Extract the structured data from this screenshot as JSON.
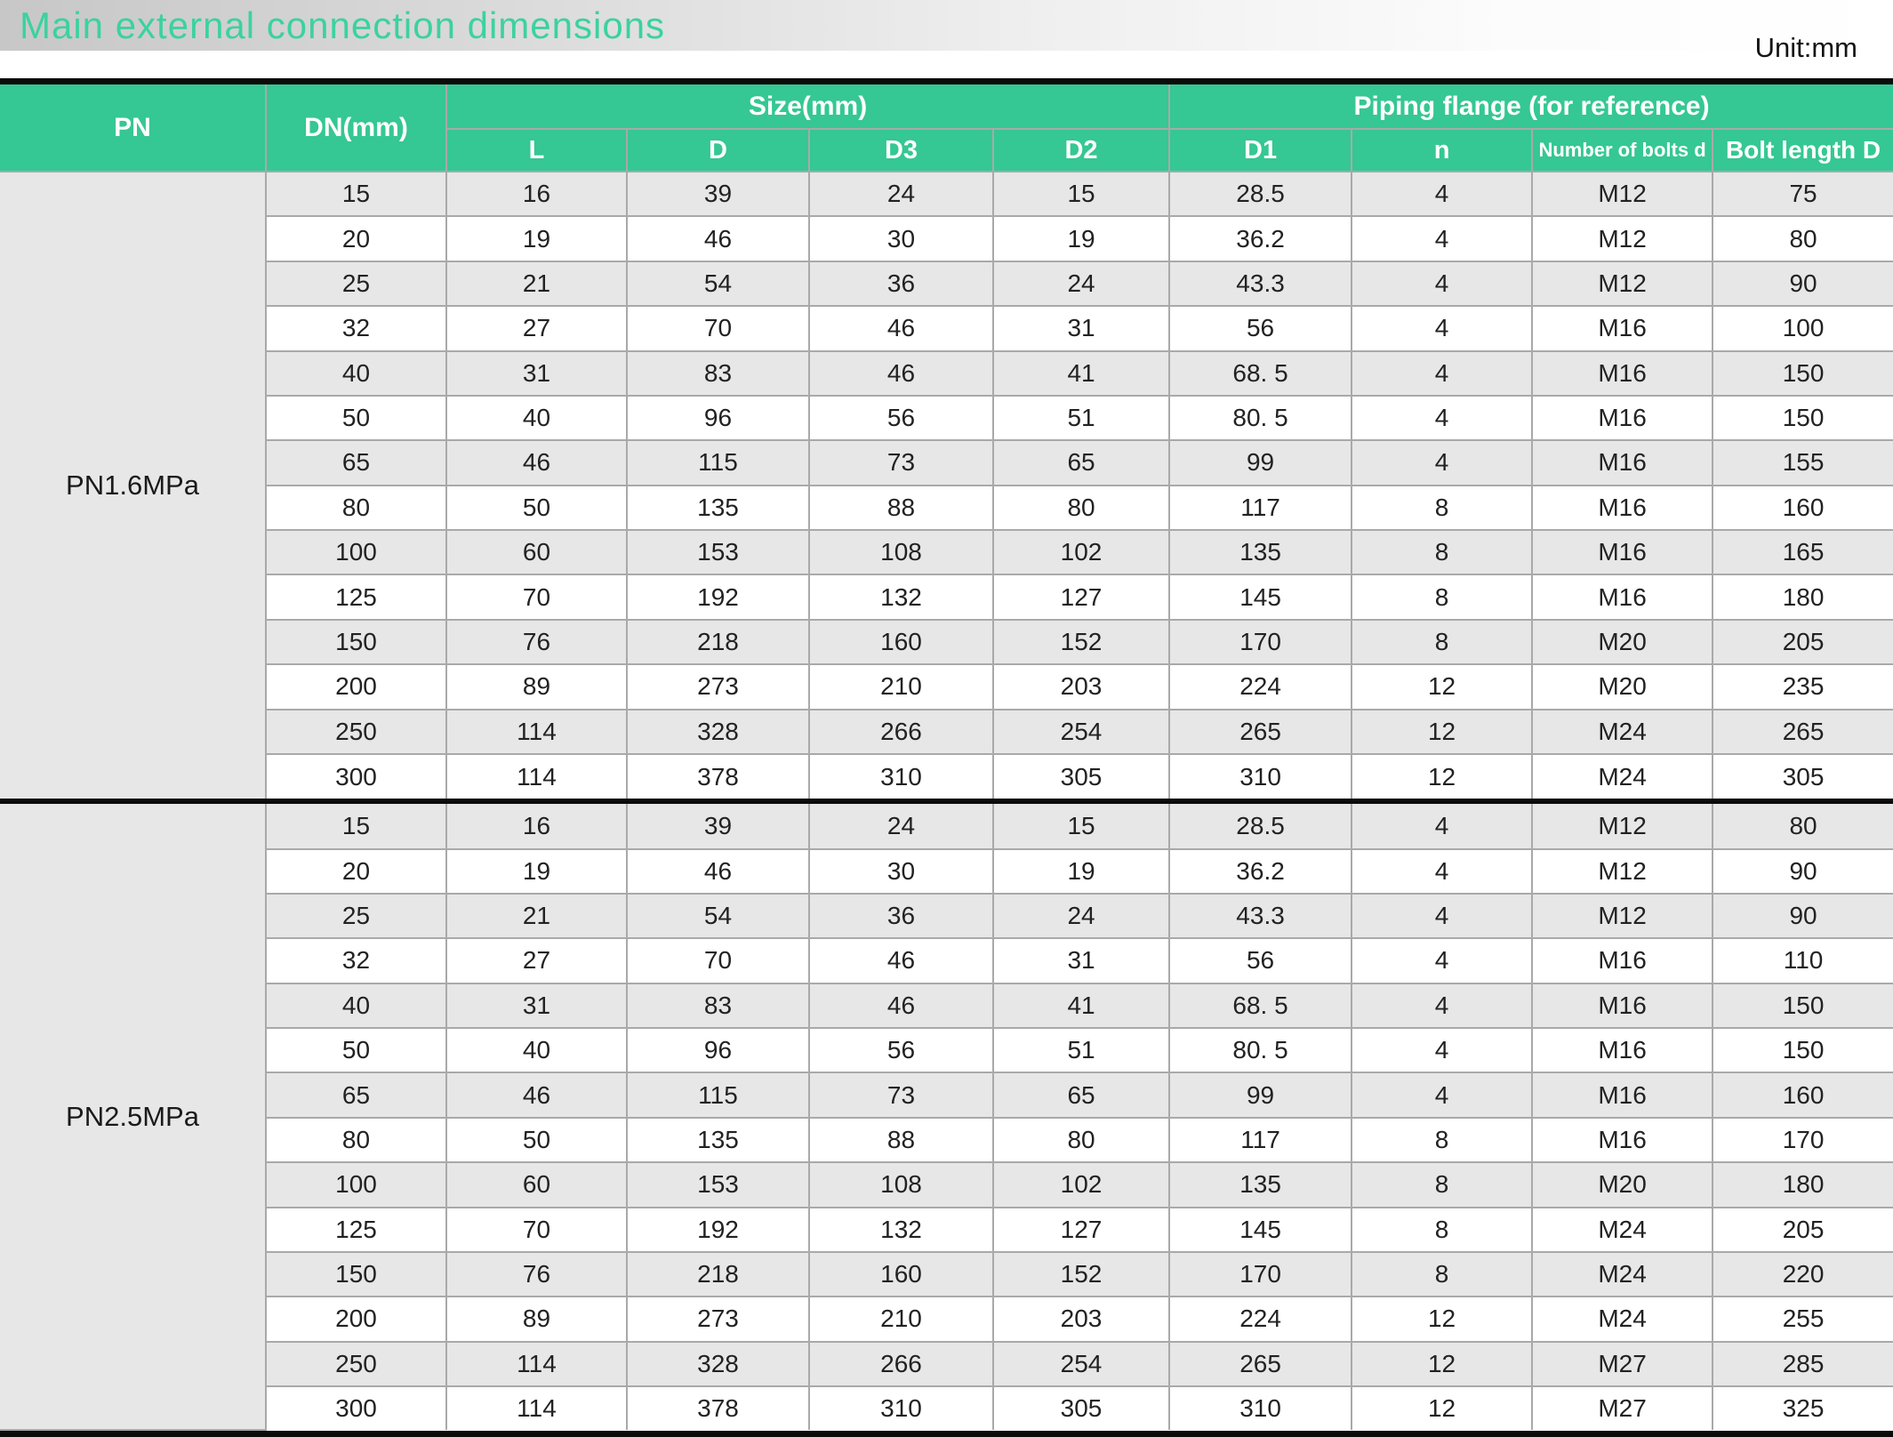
{
  "title": "Main external connection dimensions",
  "unit_label": "Unit:mm",
  "colors": {
    "header_green": "#35c794",
    "title_green": "#3bd2a0",
    "stripe_gray": "#e7e7e7",
    "grid_gray": "#a9a9a9",
    "border_black": "#0b0b0b"
  },
  "table": {
    "col_headers": {
      "pn": "PN",
      "dn": "DN(mm)",
      "size_group": "Size(mm)",
      "flange_group": "Piping flange (for reference)",
      "sub": [
        "L",
        "D",
        "D3",
        "D2",
        "D1",
        "n",
        "Number of bolts d",
        "Bolt length D"
      ]
    },
    "sections": [
      {
        "pn_label": "PN1.6MPa",
        "rows": [
          [
            "15",
            "16",
            "39",
            "24",
            "15",
            "28.5",
            "4",
            "M12",
            "75"
          ],
          [
            "20",
            "19",
            "46",
            "30",
            "19",
            "36.2",
            "4",
            "M12",
            "80"
          ],
          [
            "25",
            "21",
            "54",
            "36",
            "24",
            "43.3",
            "4",
            "M12",
            "90"
          ],
          [
            "32",
            "27",
            "70",
            "46",
            "31",
            "56",
            "4",
            "M16",
            "100"
          ],
          [
            "40",
            "31",
            "83",
            "46",
            "41",
            "68. 5",
            "4",
            "M16",
            "150"
          ],
          [
            "50",
            "40",
            "96",
            "56",
            "51",
            "80. 5",
            "4",
            "M16",
            "150"
          ],
          [
            "65",
            "46",
            "115",
            "73",
            "65",
            "99",
            "4",
            "M16",
            "155"
          ],
          [
            "80",
            "50",
            "135",
            "88",
            "80",
            "117",
            "8",
            "M16",
            "160"
          ],
          [
            "100",
            "60",
            "153",
            "108",
            "102",
            "135",
            "8",
            "M16",
            "165"
          ],
          [
            "125",
            "70",
            "192",
            "132",
            "127",
            "145",
            "8",
            "M16",
            "180"
          ],
          [
            "150",
            "76",
            "218",
            "160",
            "152",
            "170",
            "8",
            "M20",
            "205"
          ],
          [
            "200",
            "89",
            "273",
            "210",
            "203",
            "224",
            "12",
            "M20",
            "235"
          ],
          [
            "250",
            "114",
            "328",
            "266",
            "254",
            "265",
            "12",
            "M24",
            "265"
          ],
          [
            "300",
            "114",
            "378",
            "310",
            "305",
            "310",
            "12",
            "M24",
            "305"
          ]
        ]
      },
      {
        "pn_label": "PN2.5MPa",
        "rows": [
          [
            "15",
            "16",
            "39",
            "24",
            "15",
            "28.5",
            "4",
            "M12",
            "80"
          ],
          [
            "20",
            "19",
            "46",
            "30",
            "19",
            "36.2",
            "4",
            "M12",
            "90"
          ],
          [
            "25",
            "21",
            "54",
            "36",
            "24",
            "43.3",
            "4",
            "M12",
            "90"
          ],
          [
            "32",
            "27",
            "70",
            "46",
            "31",
            "56",
            "4",
            "M16",
            "110"
          ],
          [
            "40",
            "31",
            "83",
            "46",
            "41",
            "68. 5",
            "4",
            "M16",
            "150"
          ],
          [
            "50",
            "40",
            "96",
            "56",
            "51",
            "80. 5",
            "4",
            "M16",
            "150"
          ],
          [
            "65",
            "46",
            "115",
            "73",
            "65",
            "99",
            "4",
            "M16",
            "160"
          ],
          [
            "80",
            "50",
            "135",
            "88",
            "80",
            "117",
            "8",
            "M16",
            "170"
          ],
          [
            "100",
            "60",
            "153",
            "108",
            "102",
            "135",
            "8",
            "M20",
            "180"
          ],
          [
            "125",
            "70",
            "192",
            "132",
            "127",
            "145",
            "8",
            "M24",
            "205"
          ],
          [
            "150",
            "76",
            "218",
            "160",
            "152",
            "170",
            "8",
            "M24",
            "220"
          ],
          [
            "200",
            "89",
            "273",
            "210",
            "203",
            "224",
            "12",
            "M24",
            "255"
          ],
          [
            "250",
            "114",
            "328",
            "266",
            "254",
            "265",
            "12",
            "M27",
            "285"
          ],
          [
            "300",
            "114",
            "378",
            "310",
            "305",
            "310",
            "12",
            "M27",
            "325"
          ]
        ]
      }
    ]
  }
}
